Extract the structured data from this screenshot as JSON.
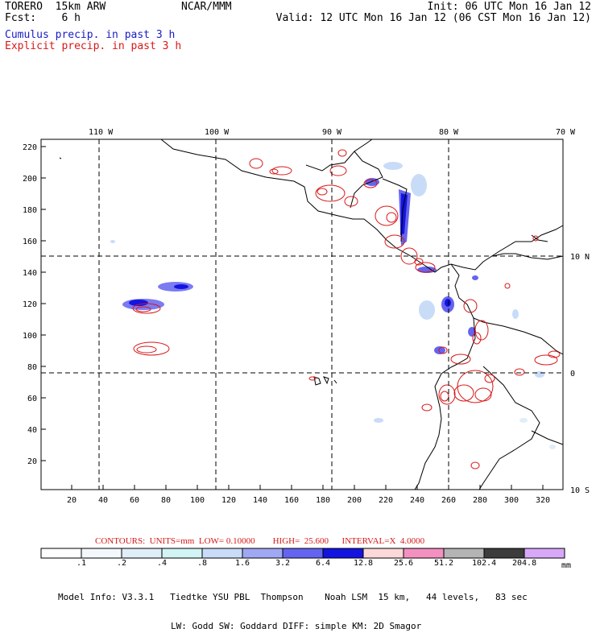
{
  "header": {
    "run_name": "TORERO  15km ARW",
    "org": "NCAR/MMM",
    "init": "Init: 06 UTC Mon 16 Jan 12",
    "fcst": "Fcst:    6 h",
    "valid": "Valid: 12 UTC Mon 16 Jan 12 (06 CST Mon 16 Jan 12)",
    "cumulus_label": "Cumulus precip. in past 3 h",
    "explicit_label": "Explicit precip. in past 3 h"
  },
  "colors": {
    "cumulus": "#1a1ac8",
    "explicit": "#d81818",
    "coast": "#000000"
  },
  "map": {
    "lon_labels": [
      "110 W",
      "100 W",
      "90 W",
      "80 W",
      "70 W"
    ],
    "lat_labels": [
      "10 N",
      "0",
      "10 S"
    ],
    "y_ticks": [
      "220",
      "200",
      "180",
      "160",
      "140",
      "120",
      "100",
      "80",
      "60",
      "40",
      "20"
    ],
    "x_ticks": [
      "20",
      "40",
      "60",
      "80",
      "100",
      "120",
      "140",
      "160",
      "180",
      "200",
      "220",
      "240",
      "260",
      "280",
      "300",
      "320"
    ]
  },
  "contours": {
    "text": "CONTOURS:  UNITS=mm  LOW= 0.10000        HIGH=  25.600      INTERVAL=X  4.0000"
  },
  "colorbar": {
    "labels": [
      ".1",
      ".2",
      ".4",
      ".8",
      "1.6",
      "3.2",
      "6.4",
      "12.8",
      "25.6",
      "51.2",
      "102.4",
      "204.8"
    ],
    "colors": [
      "#ffffff",
      "#f2f8fc",
      "#e0eef8",
      "#d2f4f4",
      "#c8dcf8",
      "#a0a8f4",
      "#6464f0",
      "#1414e0",
      "#fcd8d8",
      "#f490c0",
      "#b4b4b4",
      "#3c3c3c",
      "#d8a8f8"
    ],
    "unit": "mm"
  },
  "model_info": {
    "line1": "Model Info: V3.3.1   Tiedtke YSU PBL  Thompson    Noah LSM  15 km,   44 levels,   83 sec",
    "line2": "LW: Godd SW: Goddard DIFF: simple KM: 2D Smagor"
  }
}
